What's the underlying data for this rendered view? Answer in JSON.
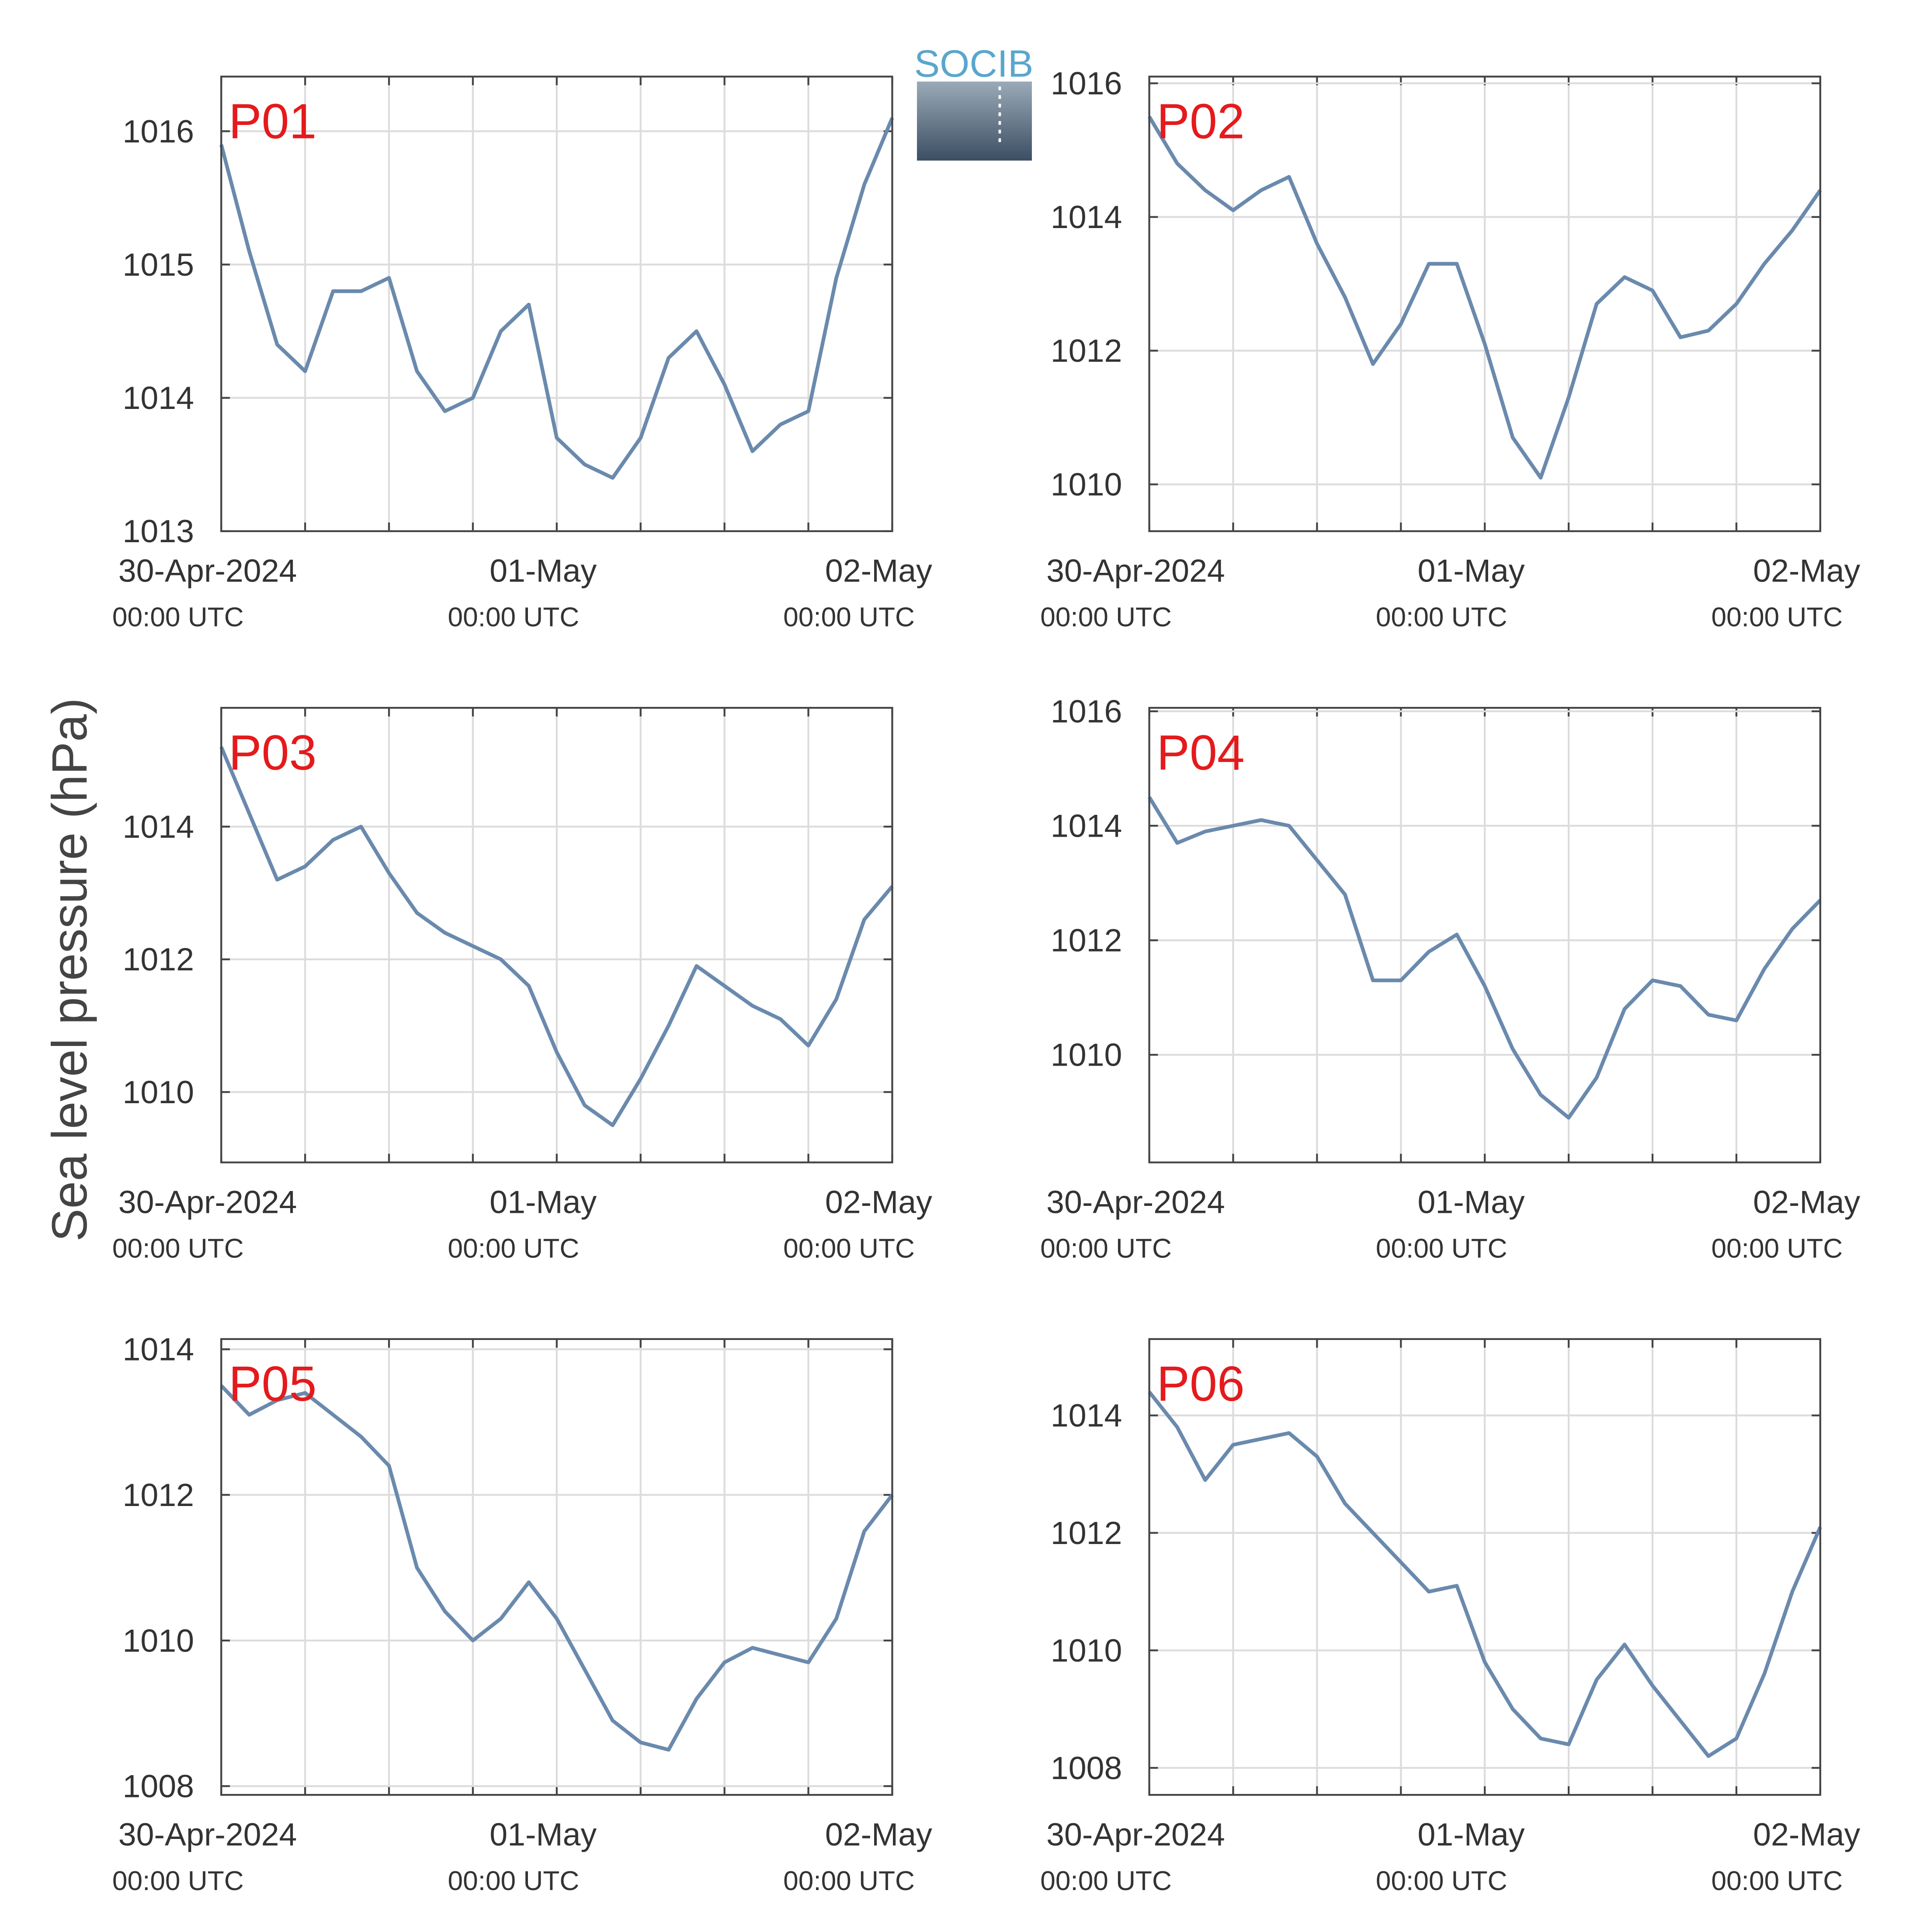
{
  "logo": "SOCIB",
  "y_label": "Sea level pressure (hPa)",
  "chart_data": [
    {
      "type": "line",
      "title": "P01",
      "color": "#6a8aad",
      "grid": true,
      "x": [
        "2024-04-30T00:00Z",
        "2024-04-30T02:00Z",
        "2024-04-30T04:00Z",
        "2024-04-30T06:00Z",
        "2024-04-30T08:00Z",
        "2024-04-30T10:00Z",
        "2024-04-30T12:00Z",
        "2024-04-30T14:00Z",
        "2024-04-30T16:00Z",
        "2024-04-30T18:00Z",
        "2024-04-30T20:00Z",
        "2024-04-30T22:00Z",
        "2024-05-01T00:00Z",
        "2024-05-01T02:00Z",
        "2024-05-01T04:00Z",
        "2024-05-01T06:00Z",
        "2024-05-01T08:00Z",
        "2024-05-01T10:00Z",
        "2024-05-01T12:00Z",
        "2024-05-01T14:00Z",
        "2024-05-01T16:00Z",
        "2024-05-01T18:00Z",
        "2024-05-01T20:00Z",
        "2024-05-01T22:00Z",
        "2024-05-02T00:00Z"
      ],
      "values": [
        1015.9,
        1015.1,
        1014.4,
        1014.2,
        1014.8,
        1014.8,
        1014.9,
        1014.2,
        1013.9,
        1014.0,
        1014.5,
        1014.7,
        1013.7,
        1013.5,
        1013.4,
        1013.7,
        1014.3,
        1014.5,
        1014.1,
        1013.6,
        1013.8,
        1013.9,
        1014.9,
        1015.6,
        1016.1
      ],
      "xlim": [
        "2024-04-30T00:00Z",
        "2024-05-02T00:00Z"
      ],
      "xticks": [
        {
          "value": "2024-04-30T00:00Z",
          "label": "30-Apr-2024",
          "time": "00:00 UTC"
        },
        {
          "value": "2024-04-30T06:00Z",
          "label": null
        },
        {
          "value": "2024-04-30T12:00Z",
          "label": null
        },
        {
          "value": "2024-04-30T18:00Z",
          "label": null
        },
        {
          "value": "2024-05-01T00:00Z",
          "label": "01-May",
          "time": "00:00 UTC"
        },
        {
          "value": "2024-05-01T06:00Z",
          "label": null
        },
        {
          "value": "2024-05-01T12:00Z",
          "label": null
        },
        {
          "value": "2024-05-01T18:00Z",
          "label": null
        },
        {
          "value": "2024-05-02T00:00Z",
          "label": "02-May",
          "time": "00:00 UTC"
        }
      ],
      "ylim": [
        1013,
        1016.41
      ],
      "yticks": [
        1013,
        1014,
        1015,
        1016
      ]
    },
    {
      "type": "line",
      "title": "P02",
      "color": "#6a8aad",
      "grid": true,
      "x": [
        "2024-04-30T00:00Z",
        "2024-04-30T02:00Z",
        "2024-04-30T04:00Z",
        "2024-04-30T06:00Z",
        "2024-04-30T08:00Z",
        "2024-04-30T10:00Z",
        "2024-04-30T12:00Z",
        "2024-04-30T14:00Z",
        "2024-04-30T16:00Z",
        "2024-04-30T18:00Z",
        "2024-04-30T20:00Z",
        "2024-04-30T22:00Z",
        "2024-05-01T00:00Z",
        "2024-05-01T02:00Z",
        "2024-05-01T04:00Z",
        "2024-05-01T06:00Z",
        "2024-05-01T08:00Z",
        "2024-05-01T10:00Z",
        "2024-05-01T12:00Z",
        "2024-05-01T14:00Z",
        "2024-05-01T16:00Z",
        "2024-05-01T18:00Z",
        "2024-05-01T20:00Z",
        "2024-05-01T22:00Z",
        "2024-05-02T00:00Z"
      ],
      "values": [
        1015.5,
        1014.8,
        1014.4,
        1014.1,
        1014.4,
        1014.6,
        1013.6,
        1012.8,
        1011.8,
        1012.4,
        1013.3,
        1013.3,
        1012.1,
        1010.7,
        1010.1,
        1011.3,
        1012.7,
        1013.1,
        1012.9,
        1012.2,
        1012.3,
        1012.7,
        1013.3,
        1013.8,
        1014.4
      ],
      "xlim": [
        "2024-04-30T00:00Z",
        "2024-05-02T00:00Z"
      ],
      "xticks": [
        {
          "value": "2024-04-30T00:00Z",
          "label": "30-Apr-2024",
          "time": "00:00 UTC"
        },
        {
          "value": "2024-04-30T06:00Z",
          "label": null
        },
        {
          "value": "2024-04-30T12:00Z",
          "label": null
        },
        {
          "value": "2024-04-30T18:00Z",
          "label": null
        },
        {
          "value": "2024-05-01T00:00Z",
          "label": "01-May",
          "time": "00:00 UTC"
        },
        {
          "value": "2024-05-01T06:00Z",
          "label": null
        },
        {
          "value": "2024-05-01T12:00Z",
          "label": null
        },
        {
          "value": "2024-05-01T18:00Z",
          "label": null
        },
        {
          "value": "2024-05-02T00:00Z",
          "label": "02-May",
          "time": "00:00 UTC"
        }
      ],
      "ylim": [
        1009.3,
        1016.1
      ],
      "yticks": [
        1010,
        1012,
        1014,
        1016
      ]
    },
    {
      "type": "line",
      "title": "P03",
      "color": "#6a8aad",
      "grid": true,
      "x": [
        "2024-04-30T00:00Z",
        "2024-04-30T02:00Z",
        "2024-04-30T04:00Z",
        "2024-04-30T06:00Z",
        "2024-04-30T08:00Z",
        "2024-04-30T10:00Z",
        "2024-04-30T12:00Z",
        "2024-04-30T14:00Z",
        "2024-04-30T16:00Z",
        "2024-04-30T18:00Z",
        "2024-04-30T20:00Z",
        "2024-04-30T22:00Z",
        "2024-05-01T00:00Z",
        "2024-05-01T02:00Z",
        "2024-05-01T04:00Z",
        "2024-05-01T06:00Z",
        "2024-05-01T08:00Z",
        "2024-05-01T10:00Z",
        "2024-05-01T12:00Z",
        "2024-05-01T14:00Z",
        "2024-05-01T16:00Z",
        "2024-05-01T18:00Z",
        "2024-05-01T20:00Z",
        "2024-05-01T22:00Z",
        "2024-05-02T00:00Z"
      ],
      "values": [
        1015.2,
        1014.2,
        1013.2,
        1013.4,
        1013.8,
        1014.0,
        1013.3,
        1012.7,
        1012.4,
        1012.2,
        1012.0,
        1011.6,
        1010.6,
        1009.8,
        1009.5,
        1010.2,
        1011.0,
        1011.9,
        1011.6,
        1011.3,
        1011.1,
        1010.7,
        1011.4,
        1012.6,
        1013.1
      ],
      "xlim": [
        "2024-04-30T00:00Z",
        "2024-05-02T00:00Z"
      ],
      "xticks": [
        {
          "value": "2024-04-30T00:00Z",
          "label": "30-Apr-2024",
          "time": "00:00 UTC"
        },
        {
          "value": "2024-04-30T06:00Z",
          "label": null
        },
        {
          "value": "2024-04-30T12:00Z",
          "label": null
        },
        {
          "value": "2024-04-30T18:00Z",
          "label": null
        },
        {
          "value": "2024-05-01T00:00Z",
          "label": "01-May",
          "time": "00:00 UTC"
        },
        {
          "value": "2024-05-01T06:00Z",
          "label": null
        },
        {
          "value": "2024-05-01T12:00Z",
          "label": null
        },
        {
          "value": "2024-05-01T18:00Z",
          "label": null
        },
        {
          "value": "2024-05-02T00:00Z",
          "label": "02-May",
          "time": "00:00 UTC"
        }
      ],
      "ylim": [
        1008.94,
        1015.79
      ],
      "yticks": [
        1010,
        1012,
        1014
      ]
    },
    {
      "type": "line",
      "title": "P04",
      "color": "#6a8aad",
      "grid": true,
      "x": [
        "2024-04-30T00:00Z",
        "2024-04-30T02:00Z",
        "2024-04-30T04:00Z",
        "2024-04-30T06:00Z",
        "2024-04-30T08:00Z",
        "2024-04-30T10:00Z",
        "2024-04-30T12:00Z",
        "2024-04-30T14:00Z",
        "2024-04-30T16:00Z",
        "2024-04-30T18:00Z",
        "2024-04-30T20:00Z",
        "2024-04-30T22:00Z",
        "2024-05-01T00:00Z",
        "2024-05-01T02:00Z",
        "2024-05-01T04:00Z",
        "2024-05-01T06:00Z",
        "2024-05-01T08:00Z",
        "2024-05-01T10:00Z",
        "2024-05-01T12:00Z",
        "2024-05-01T14:00Z",
        "2024-05-01T16:00Z",
        "2024-05-01T18:00Z",
        "2024-05-01T20:00Z",
        "2024-05-01T22:00Z",
        "2024-05-02T00:00Z"
      ],
      "values": [
        1014.5,
        1013.7,
        1013.9,
        1014.0,
        1014.1,
        1014.0,
        1013.4,
        1012.8,
        1011.3,
        1011.3,
        1011.8,
        1012.1,
        1011.2,
        1010.1,
        1009.3,
        1008.9,
        1009.6,
        1010.8,
        1011.3,
        1011.2,
        1010.7,
        1010.6,
        1011.5,
        1012.2,
        1012.7
      ],
      "xlim": [
        "2024-04-30T00:00Z",
        "2024-05-02T00:00Z"
      ],
      "xticks": [
        {
          "value": "2024-04-30T00:00Z",
          "label": "30-Apr-2024",
          "time": "00:00 UTC"
        },
        {
          "value": "2024-04-30T06:00Z",
          "label": null
        },
        {
          "value": "2024-04-30T12:00Z",
          "label": null
        },
        {
          "value": "2024-04-30T18:00Z",
          "label": null
        },
        {
          "value": "2024-05-01T00:00Z",
          "label": "01-May",
          "time": "00:00 UTC"
        },
        {
          "value": "2024-05-01T06:00Z",
          "label": null
        },
        {
          "value": "2024-05-01T12:00Z",
          "label": null
        },
        {
          "value": "2024-05-01T18:00Z",
          "label": null
        },
        {
          "value": "2024-05-02T00:00Z",
          "label": "02-May",
          "time": "00:00 UTC"
        }
      ],
      "ylim": [
        1008.12,
        1016.06
      ],
      "yticks": [
        1010,
        1012,
        1014,
        1016
      ]
    },
    {
      "type": "line",
      "title": "P05",
      "color": "#6a8aad",
      "grid": true,
      "x": [
        "2024-04-30T00:00Z",
        "2024-04-30T02:00Z",
        "2024-04-30T04:00Z",
        "2024-04-30T06:00Z",
        "2024-04-30T08:00Z",
        "2024-04-30T10:00Z",
        "2024-04-30T12:00Z",
        "2024-04-30T14:00Z",
        "2024-04-30T16:00Z",
        "2024-04-30T18:00Z",
        "2024-04-30T20:00Z",
        "2024-04-30T22:00Z",
        "2024-05-01T00:00Z",
        "2024-05-01T02:00Z",
        "2024-05-01T04:00Z",
        "2024-05-01T06:00Z",
        "2024-05-01T08:00Z",
        "2024-05-01T10:00Z",
        "2024-05-01T12:00Z",
        "2024-05-01T14:00Z",
        "2024-05-01T16:00Z",
        "2024-05-01T18:00Z",
        "2024-05-01T20:00Z",
        "2024-05-01T22:00Z",
        "2024-05-02T00:00Z"
      ],
      "values": [
        1013.5,
        1013.1,
        1013.3,
        1013.4,
        1013.1,
        1012.8,
        1012.4,
        1011.0,
        1010.4,
        1010.0,
        1010.3,
        1010.8,
        1010.3,
        1009.6,
        1008.9,
        1008.6,
        1008.5,
        1009.2,
        1009.7,
        1009.9,
        1009.8,
        1009.7,
        1010.3,
        1011.5,
        1012.0
      ],
      "xlim": [
        "2024-04-30T00:00Z",
        "2024-05-02T00:00Z"
      ],
      "xticks": [
        {
          "value": "2024-04-30T00:00Z",
          "label": "30-Apr-2024",
          "time": "00:00 UTC"
        },
        {
          "value": "2024-04-30T06:00Z",
          "label": null
        },
        {
          "value": "2024-04-30T12:00Z",
          "label": null
        },
        {
          "value": "2024-04-30T18:00Z",
          "label": null
        },
        {
          "value": "2024-05-01T00:00Z",
          "label": "01-May",
          "time": "00:00 UTC"
        },
        {
          "value": "2024-05-01T06:00Z",
          "label": null
        },
        {
          "value": "2024-05-01T12:00Z",
          "label": null
        },
        {
          "value": "2024-05-01T18:00Z",
          "label": null
        },
        {
          "value": "2024-05-02T00:00Z",
          "label": "02-May",
          "time": "00:00 UTC"
        }
      ],
      "ylim": [
        1007.88,
        1014.14
      ],
      "yticks": [
        1008,
        1010,
        1012,
        1014
      ]
    },
    {
      "type": "line",
      "title": "P06",
      "color": "#6a8aad",
      "grid": true,
      "x": [
        "2024-04-30T00:00Z",
        "2024-04-30T02:00Z",
        "2024-04-30T04:00Z",
        "2024-04-30T06:00Z",
        "2024-04-30T08:00Z",
        "2024-04-30T10:00Z",
        "2024-04-30T12:00Z",
        "2024-04-30T14:00Z",
        "2024-04-30T16:00Z",
        "2024-04-30T18:00Z",
        "2024-04-30T20:00Z",
        "2024-04-30T22:00Z",
        "2024-05-01T00:00Z",
        "2024-05-01T02:00Z",
        "2024-05-01T04:00Z",
        "2024-05-01T06:00Z",
        "2024-05-01T08:00Z",
        "2024-05-01T10:00Z",
        "2024-05-01T12:00Z",
        "2024-05-01T14:00Z",
        "2024-05-01T16:00Z",
        "2024-05-01T18:00Z",
        "2024-05-01T20:00Z",
        "2024-05-01T22:00Z",
        "2024-05-02T00:00Z"
      ],
      "values": [
        1014.4,
        1013.8,
        1012.9,
        1013.5,
        1013.6,
        1013.7,
        1013.3,
        1012.5,
        1012.0,
        1011.5,
        1011.0,
        1011.1,
        1009.8,
        1009.0,
        1008.5,
        1008.4,
        1009.5,
        1010.1,
        1009.4,
        1008.8,
        1008.2,
        1008.5,
        1009.6,
        1011.0,
        1012.1
      ],
      "xlim": [
        "2024-04-30T00:00Z",
        "2024-05-02T00:00Z"
      ],
      "xticks": [
        {
          "value": "2024-04-30T00:00Z",
          "label": "30-Apr-2024",
          "time": "00:00 UTC"
        },
        {
          "value": "2024-04-30T06:00Z",
          "label": null
        },
        {
          "value": "2024-04-30T12:00Z",
          "label": null
        },
        {
          "value": "2024-04-30T18:00Z",
          "label": null
        },
        {
          "value": "2024-05-01T00:00Z",
          "label": "01-May",
          "time": "00:00 UTC"
        },
        {
          "value": "2024-05-01T06:00Z",
          "label": null
        },
        {
          "value": "2024-05-01T12:00Z",
          "label": null
        },
        {
          "value": "2024-05-01T18:00Z",
          "label": null
        },
        {
          "value": "2024-05-02T00:00Z",
          "label": "02-May",
          "time": "00:00 UTC"
        }
      ],
      "ylim": [
        1007.54,
        1015.3
      ],
      "yticks": [
        1008,
        1010,
        1012,
        1014
      ]
    }
  ]
}
